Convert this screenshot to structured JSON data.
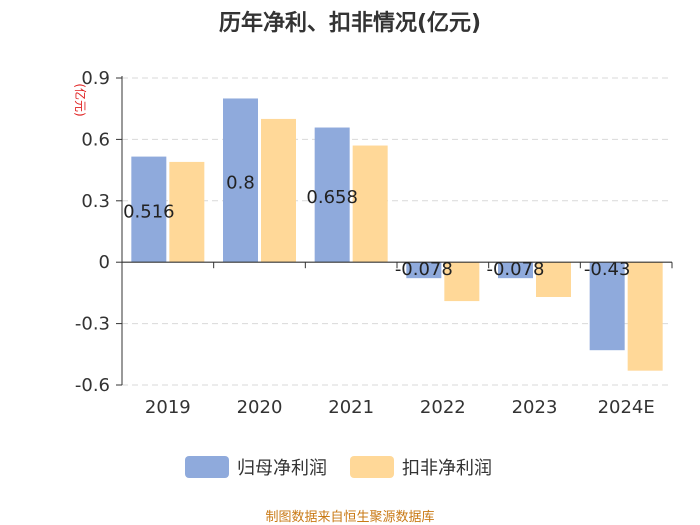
{
  "chart_data": {
    "type": "bar",
    "title": "历年净利、扣非情况(亿元)",
    "ylabel": "(亿元)",
    "categories": [
      "2019",
      "2020",
      "2021",
      "2022",
      "2023",
      "2024E"
    ],
    "series": [
      {
        "name": "归母净利润",
        "values": [
          0.516,
          0.8,
          0.658,
          -0.078,
          -0.078,
          -0.43
        ],
        "labels": [
          "0.516",
          "0.8",
          "0.658",
          "-0.078",
          "-0.078",
          "-0.43"
        ]
      },
      {
        "name": "扣非净利润",
        "values": [
          0.49,
          0.7,
          0.57,
          -0.19,
          -0.17,
          -0.53
        ]
      }
    ],
    "ylim": [
      -0.6,
      0.9
    ],
    "yticks": [
      "0.9",
      "0.6",
      "0.3",
      "0",
      "-0.3",
      "-0.6"
    ],
    "grid": true,
    "legend": "bottom"
  },
  "colors": {
    "series1": "#8faadc",
    "series2": "#ffd898",
    "axis": "#333333",
    "grid": "#d9d9d9",
    "ylabel": "#e02020",
    "source": "#c97a16"
  },
  "source_text": "制图数据来自恒生聚源数据库"
}
